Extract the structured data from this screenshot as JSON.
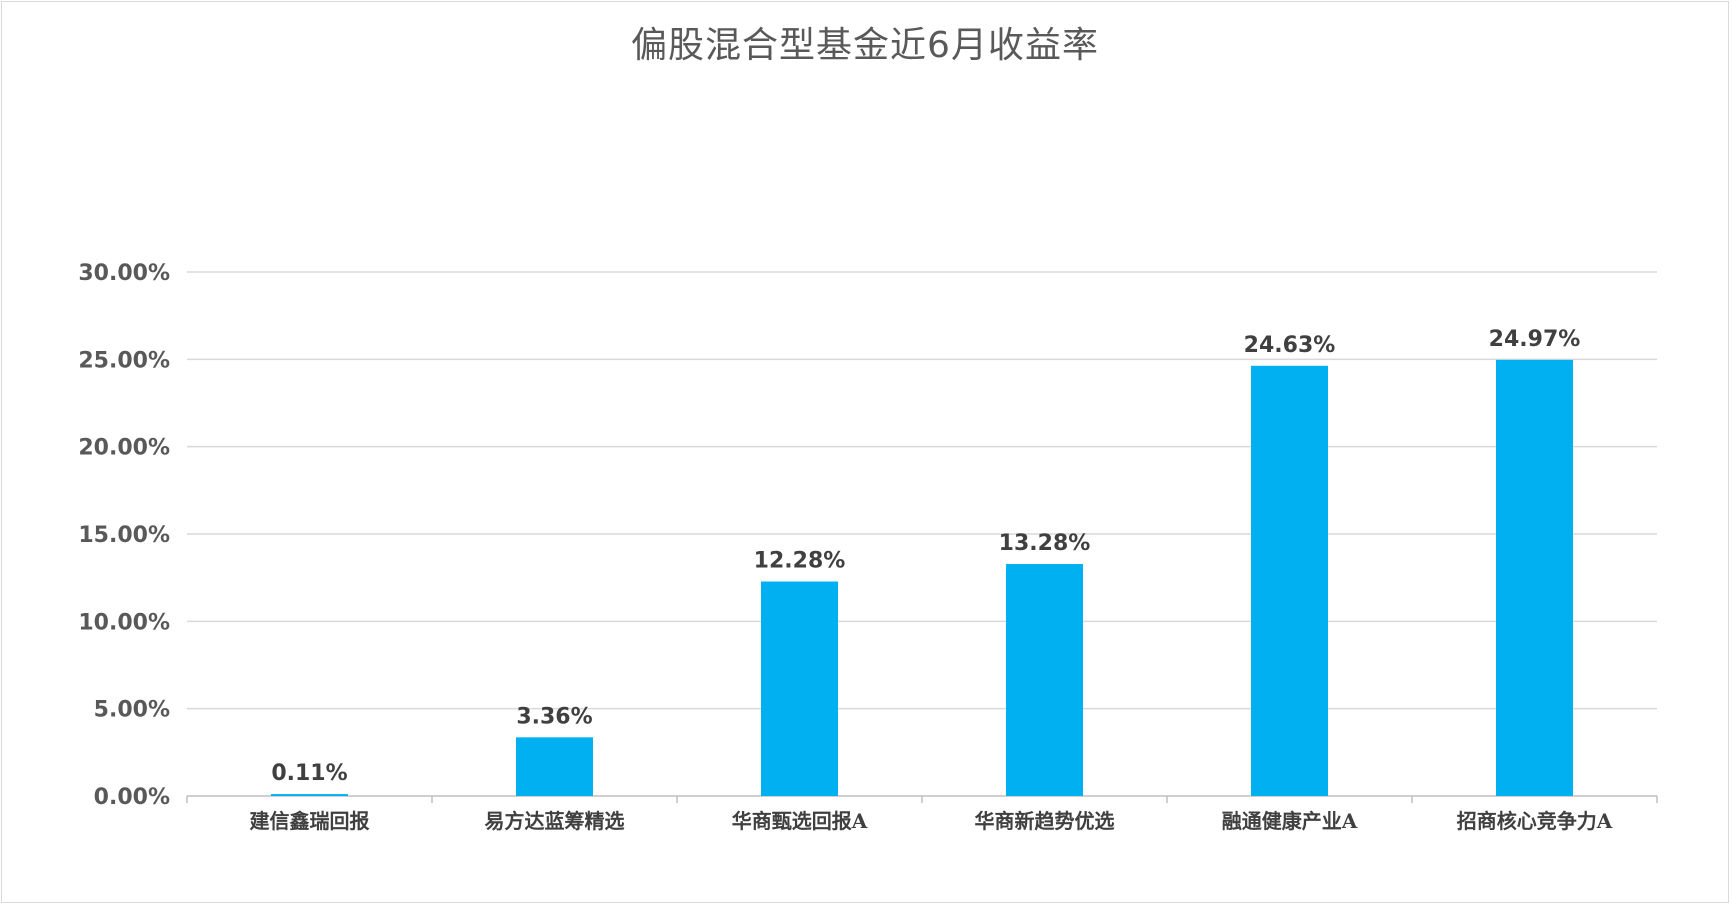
{
  "chart_data": {
    "type": "bar",
    "title": "偏股混合型基金近6月收益率",
    "xlabel": "",
    "ylabel": "",
    "categories": [
      "建信鑫瑞回报",
      "易方达蓝筹精选",
      "华商甄选回报A",
      "华商新趋势优选",
      "融通健康产业A",
      "招商核心竞争力A"
    ],
    "values": [
      0.11,
      3.36,
      12.28,
      13.28,
      24.63,
      24.97
    ],
    "value_labels": [
      "0.11%",
      "3.36%",
      "12.28%",
      "13.28%",
      "24.63%",
      "24.97%"
    ],
    "ylim": [
      0,
      30
    ],
    "yticks": [
      "0.00%",
      "5.00%",
      "10.00%",
      "15.00%",
      "20.00%",
      "25.00%",
      "30.00%"
    ],
    "grid": true,
    "legend": "none",
    "bar_color": "#00b0f0",
    "grid_color": "#d9d9d9"
  }
}
